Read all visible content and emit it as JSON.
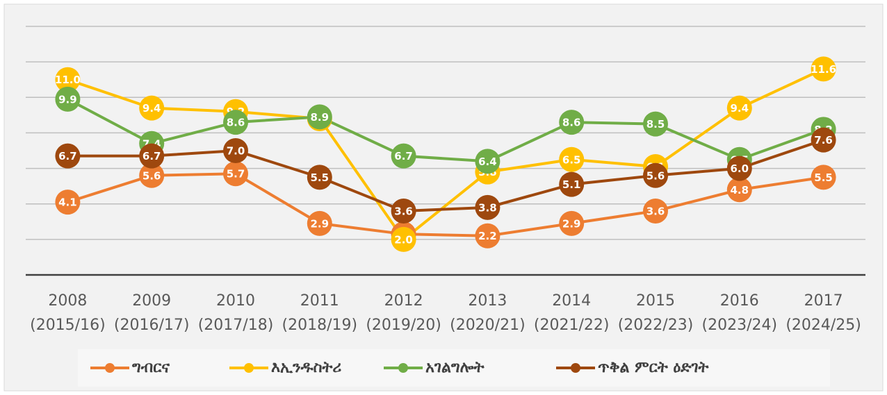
{
  "chart_data": {
    "type": "line",
    "categories": [
      "2008",
      "2009",
      "2010",
      "2011",
      "2012",
      "2013",
      "2014",
      "2015",
      "2016",
      "2017"
    ],
    "category_sublabels": [
      "(2015/16)",
      "(2016/17)",
      "(2017/18)",
      "(2018/19)",
      "(2019/20)",
      "(2020/21)",
      "(2021/22)",
      "(2022/23)",
      "(2023/24)",
      "(2024/25)"
    ],
    "series": [
      {
        "name": "ግብርና",
        "color": "#ed7d31",
        "values": [
          4.1,
          5.6,
          5.7,
          2.9,
          2.3,
          2.2,
          2.9,
          3.6,
          4.8,
          5.5
        ]
      },
      {
        "name": "እኢንዱስትሪ",
        "color": "#ffc000",
        "values": [
          11.0,
          9.4,
          9.2,
          8.8,
          2.0,
          5.8,
          6.5,
          6.1,
          9.4,
          11.6
        ]
      },
      {
        "name": "አገልግሎት",
        "color": "#70ad47",
        "values": [
          9.9,
          7.4,
          8.6,
          8.9,
          6.7,
          6.4,
          8.6,
          8.5,
          6.5,
          8.2
        ]
      },
      {
        "name": "ጥቅል ምርት ዕድገት",
        "color": "#9e480e",
        "values": [
          6.7,
          6.7,
          7.0,
          5.5,
          3.6,
          3.8,
          5.1,
          5.6,
          6.0,
          7.6
        ]
      }
    ],
    "value_labels": [
      [
        "4.1",
        "5.6",
        "5.7",
        "2.9",
        "2.3",
        "2.2",
        "2.9",
        "3.6",
        "4.8",
        "5.5"
      ],
      [
        "11.0",
        "9.4",
        "9.2",
        "8.8",
        "2.0",
        "5.8",
        "6.5",
        "6.1",
        "9.4",
        "11.6"
      ],
      [
        "9.9",
        "7.4",
        "8.6",
        "8.9",
        "6.7",
        "6.4",
        "8.6",
        "8.5",
        "6.5",
        "8.2"
      ],
      [
        "6.7",
        "6.7",
        "7.0",
        "5.5",
        "3.6",
        "3.8",
        "5.1",
        "5.6",
        "6.0",
        "7.6"
      ]
    ],
    "ylim": [
      0,
      14
    ],
    "yticks": [
      2,
      4,
      6,
      8,
      10,
      12,
      14
    ],
    "grid": true,
    "legend": "bottom"
  }
}
